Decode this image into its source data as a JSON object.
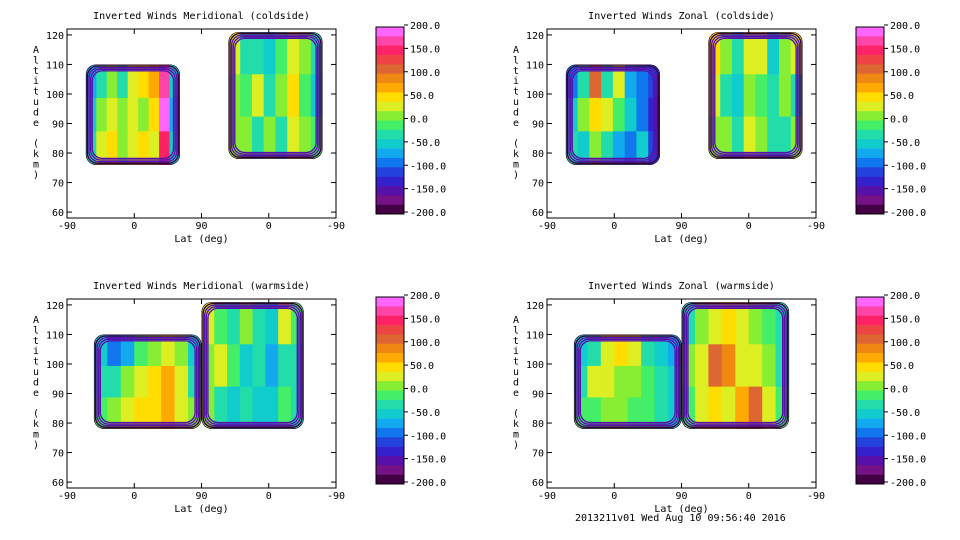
{
  "footer": "2013211v01 Wed Aug 10 09:56:40 2016",
  "colorbar": {
    "ticks": [
      "200.0",
      "150.0",
      "100.0",
      "50.0",
      "0.0",
      "-50.0",
      "-100.0",
      "-150.0",
      "-200.0"
    ],
    "colors": [
      "#ff66ff",
      "#ff44aa",
      "#ff2266",
      "#ee4444",
      "#dd6633",
      "#ee8811",
      "#ffaa00",
      "#ffdd00",
      "#ddee22",
      "#88ee33",
      "#44ee66",
      "#22ddaa",
      "#11cccc",
      "#11aaee",
      "#1177ee",
      "#2244dd",
      "#3322cc",
      "#5511aa",
      "#771188",
      "#440044"
    ]
  },
  "chart_data": [
    {
      "type": "heatmap",
      "title": "Inverted Winds Meridional (coldside)",
      "xlabel": "Lat (deg)",
      "ylabel": "Altitude (km)",
      "xticks": [
        "-90",
        "0",
        "90",
        "0",
        "-90"
      ],
      "yticks": [
        "60",
        "70",
        "80",
        "90",
        "100",
        "110",
        "120"
      ],
      "ylim": [
        58,
        122
      ],
      "zlim": [
        -200,
        200
      ],
      "regions": [
        {
          "x0": 0.07,
          "x1": 0.42,
          "y0": 76,
          "y1": 110,
          "field": [
            [
              -60,
              -20,
              10,
              -30,
              40,
              60,
              80,
              180,
              -40
            ],
            [
              -40,
              20,
              40,
              10,
              30,
              20,
              60,
              190,
              -60
            ],
            [
              -30,
              40,
              60,
              20,
              30,
              50,
              40,
              150,
              -40
            ]
          ]
        },
        {
          "x0": 0.6,
          "x1": 0.95,
          "y0": 78,
          "y1": 121,
          "field": [
            [
              30,
              -30,
              -20,
              -40,
              -10,
              40,
              20,
              -30
            ],
            [
              20,
              -10,
              30,
              -20,
              20,
              60,
              -10,
              -40
            ],
            [
              10,
              20,
              -20,
              10,
              -30,
              30,
              20,
              -10
            ]
          ]
        }
      ]
    },
    {
      "type": "heatmap",
      "title": "Inverted Winds Zonal (coldside)",
      "xlabel": "Lat (deg)",
      "ylabel": "Altitude (km)",
      "xticks": [
        "-90",
        "0",
        "90",
        "0",
        "-90"
      ],
      "yticks": [
        "60",
        "70",
        "80",
        "90",
        "100",
        "110",
        "120"
      ],
      "ylim": [
        58,
        122
      ],
      "zlim": [
        -200,
        200
      ],
      "regions": [
        {
          "x0": 0.07,
          "x1": 0.42,
          "y0": 76,
          "y1": 110,
          "field": [
            [
              -80,
              -20,
              120,
              -20,
              40,
              -60,
              -90,
              -110
            ],
            [
              -40,
              10,
              60,
              30,
              -10,
              -40,
              -80,
              -120
            ],
            [
              -20,
              -40,
              10,
              -30,
              -60,
              -80,
              -40,
              -100
            ]
          ]
        },
        {
          "x0": 0.6,
          "x1": 0.95,
          "y0": 78,
          "y1": 121,
          "field": [
            [
              60,
              10,
              -20,
              40,
              30,
              -40,
              20,
              40
            ],
            [
              30,
              -20,
              -40,
              20,
              -10,
              -30,
              10,
              -20
            ],
            [
              20,
              10,
              -20,
              30,
              10,
              -20,
              -30,
              10
            ]
          ]
        }
      ]
    },
    {
      "type": "heatmap",
      "title": "Inverted Winds Meridional (warmside)",
      "xlabel": "Lat (deg)",
      "ylabel": "Altitude (km)",
      "xticks": [
        "-90",
        "0",
        "90",
        "0",
        "-90"
      ],
      "yticks": [
        "60",
        "70",
        "80",
        "90",
        "100",
        "110",
        "120"
      ],
      "ylim": [
        58,
        122
      ],
      "zlim": [
        -200,
        200
      ],
      "regions": [
        {
          "x0": 0.1,
          "x1": 0.5,
          "y0": 78,
          "y1": 110,
          "field": [
            [
              -40,
              -80,
              -60,
              -10,
              20,
              40,
              10,
              -40
            ],
            [
              -20,
              -30,
              10,
              30,
              50,
              70,
              40,
              -20
            ],
            [
              0,
              20,
              40,
              50,
              60,
              80,
              30,
              10
            ]
          ]
        },
        {
          "x0": 0.5,
          "x1": 0.88,
          "y0": 78,
          "y1": 121,
          "field": [
            [
              30,
              -10,
              -30,
              10,
              -20,
              -40,
              40,
              -10
            ],
            [
              20,
              30,
              -10,
              -40,
              -20,
              -60,
              -30,
              -20
            ],
            [
              10,
              -20,
              -40,
              -30,
              -50,
              -40,
              -10,
              -30
            ]
          ]
        }
      ]
    },
    {
      "type": "heatmap",
      "title": "Inverted Winds Zonal (warmside)",
      "xlabel": "Lat (deg)",
      "ylabel": "Altitude (km)",
      "xticks": [
        "-90",
        "0",
        "90",
        "0",
        "-90"
      ],
      "yticks": [
        "60",
        "70",
        "80",
        "90",
        "100",
        "110",
        "120"
      ],
      "ylim": [
        58,
        122
      ],
      "zlim": [
        -200,
        200
      ],
      "regions": [
        {
          "x0": 0.1,
          "x1": 0.5,
          "y0": 78,
          "y1": 110,
          "field": [
            [
              -40,
              -20,
              30,
              50,
              40,
              -20,
              -40,
              -60
            ],
            [
              -20,
              40,
              30,
              20,
              10,
              0,
              -30,
              -40
            ],
            [
              -10,
              0,
              20,
              10,
              0,
              -10,
              -30,
              -50
            ]
          ]
        },
        {
          "x0": 0.5,
          "x1": 0.9,
          "y0": 78,
          "y1": 121,
          "field": [
            [
              -20,
              20,
              40,
              50,
              30,
              10,
              -10,
              -30
            ],
            [
              10,
              40,
              110,
              90,
              40,
              30,
              10,
              -20
            ],
            [
              0,
              30,
              60,
              40,
              70,
              120,
              40,
              -10
            ]
          ]
        }
      ]
    }
  ]
}
